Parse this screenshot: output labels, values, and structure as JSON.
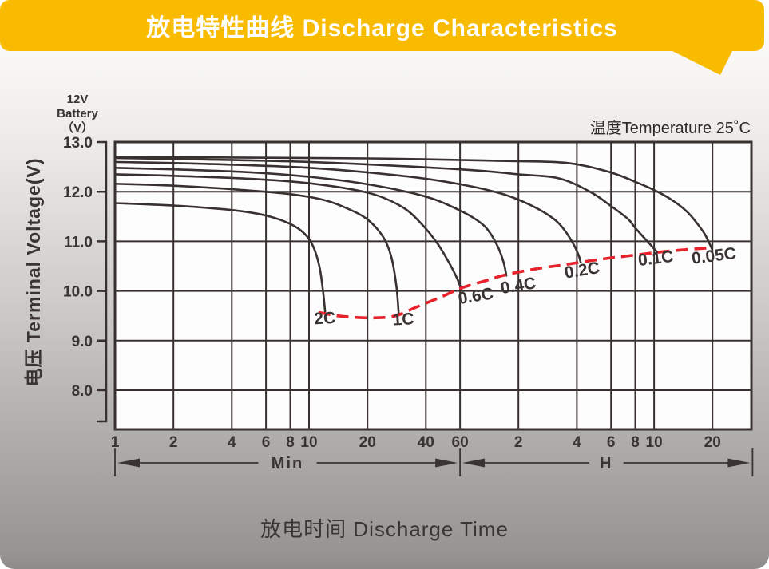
{
  "banner": {
    "title": "放电特性曲线 Discharge Characteristics",
    "bg_color": "#F8BB00",
    "text_color": "#FFFFFF"
  },
  "footer": {
    "x_axis_title": "放电时间 Discharge Time"
  },
  "chart_data": {
    "type": "line",
    "temperature_note": "温度Temperature 25˚C",
    "y_axis": {
      "title": "电压 Terminal Voltage(V)",
      "unit_lines": [
        "12V",
        "Battery",
        "（V）"
      ],
      "ticks": [
        13.0,
        12.0,
        11.0,
        10.0,
        9.0,
        8.0
      ],
      "unit": "V"
    },
    "x_axis": {
      "scale": "log",
      "unit_sections": [
        {
          "label": "Min",
          "from_t_min": 1,
          "to_t_min": 60
        },
        {
          "label": "H",
          "from_t_min": 60,
          "to_t_min": 1930
        }
      ],
      "ticks": [
        {
          "t_min": 1,
          "label": "1"
        },
        {
          "t_min": 2,
          "label": "2"
        },
        {
          "t_min": 4,
          "label": "4"
        },
        {
          "t_min": 6,
          "label": "6"
        },
        {
          "t_min": 8,
          "label": "8"
        },
        {
          "t_min": 10,
          "label": "10"
        },
        {
          "t_min": 20,
          "label": "20"
        },
        {
          "t_min": 40,
          "label": "40"
        },
        {
          "t_min": 60,
          "label": "60"
        },
        {
          "t_min": 120,
          "label": "2"
        },
        {
          "t_min": 240,
          "label": "4"
        },
        {
          "t_min": 360,
          "label": "6"
        },
        {
          "t_min": 480,
          "label": "8"
        },
        {
          "t_min": 600,
          "label": "10"
        },
        {
          "t_min": 1200,
          "label": "20"
        }
      ]
    },
    "style": {
      "curve_color": "#383130",
      "grid_color": "#383130",
      "cutoff_color": "#E8222D",
      "plot_bg": "#FDFDFD",
      "text_color": "#3A3433"
    },
    "series": [
      {
        "name": "2C",
        "points": [
          [
            1,
            11.77
          ],
          [
            2,
            11.72
          ],
          [
            4,
            11.63
          ],
          [
            6,
            11.52
          ],
          [
            8,
            11.35
          ],
          [
            9.5,
            11.15
          ],
          [
            10.5,
            10.9
          ],
          [
            11.3,
            10.5
          ],
          [
            11.8,
            10.0
          ],
          [
            12.1,
            9.58
          ]
        ]
      },
      {
        "name": "1C",
        "points": [
          [
            1,
            12.16
          ],
          [
            2,
            12.12
          ],
          [
            4,
            12.05
          ],
          [
            8,
            11.95
          ],
          [
            12,
            11.83
          ],
          [
            16,
            11.65
          ],
          [
            20,
            11.44
          ],
          [
            24,
            11.1
          ],
          [
            26.5,
            10.7
          ],
          [
            28.2,
            10.1
          ],
          [
            29,
            9.52
          ]
        ]
      },
      {
        "name": "0.6C",
        "points": [
          [
            1,
            12.35
          ],
          [
            2,
            12.32
          ],
          [
            5,
            12.26
          ],
          [
            10,
            12.17
          ],
          [
            20,
            11.98
          ],
          [
            30,
            11.7
          ],
          [
            38,
            11.35
          ],
          [
            46,
            10.95
          ],
          [
            53,
            10.55
          ],
          [
            58,
            10.25
          ],
          [
            61,
            10.03
          ]
        ]
      },
      {
        "name": "0.4C",
        "points": [
          [
            1,
            12.48
          ],
          [
            2,
            12.45
          ],
          [
            5,
            12.39
          ],
          [
            10,
            12.3
          ],
          [
            20,
            12.15
          ],
          [
            40,
            11.9
          ],
          [
            60,
            11.62
          ],
          [
            75,
            11.4
          ],
          [
            85,
            11.19
          ],
          [
            95,
            10.85
          ],
          [
            101,
            10.55
          ],
          [
            104,
            10.31
          ]
        ]
      },
      {
        "name": "0.2C",
        "points": [
          [
            1,
            12.6
          ],
          [
            3,
            12.56
          ],
          [
            10,
            12.48
          ],
          [
            30,
            12.32
          ],
          [
            60,
            12.15
          ],
          [
            100,
            11.95
          ],
          [
            140,
            11.72
          ],
          [
            180,
            11.47
          ],
          [
            205,
            11.25
          ],
          [
            230,
            10.95
          ],
          [
            245,
            10.72
          ],
          [
            251,
            10.58
          ]
        ]
      },
      {
        "name": "0.1C",
        "points": [
          [
            1,
            12.68
          ],
          [
            10,
            12.6
          ],
          [
            60,
            12.45
          ],
          [
            120,
            12.35
          ],
          [
            193,
            12.27
          ],
          [
            280,
            12.0
          ],
          [
            360,
            11.71
          ],
          [
            440,
            11.45
          ],
          [
            480,
            11.27
          ],
          [
            560,
            10.98
          ],
          [
            624,
            10.78
          ]
        ]
      },
      {
        "name": "0.05C",
        "points": [
          [
            1,
            12.7
          ],
          [
            20,
            12.67
          ],
          [
            100,
            12.62
          ],
          [
            212,
            12.58
          ],
          [
            350,
            12.4
          ],
          [
            500,
            12.17
          ],
          [
            624,
            12.0
          ],
          [
            750,
            11.82
          ],
          [
            885,
            11.6
          ],
          [
            1000,
            11.36
          ],
          [
            1089,
            11.16
          ],
          [
            1150,
            10.98
          ],
          [
            1195,
            10.84
          ]
        ]
      }
    ],
    "cutoff_envelope": {
      "style": "dashed",
      "points": [
        [
          11.2,
          9.57
        ],
        [
          14,
          9.5
        ],
        [
          19,
          9.46
        ],
        [
          25,
          9.47
        ],
        [
          29,
          9.52
        ],
        [
          36,
          9.68
        ],
        [
          48,
          9.88
        ],
        [
          61,
          10.06
        ],
        [
          80,
          10.2
        ],
        [
          104,
          10.33
        ],
        [
          150,
          10.45
        ],
        [
          200,
          10.52
        ],
        [
          251,
          10.58
        ],
        [
          350,
          10.66
        ],
        [
          450,
          10.71
        ],
        [
          624,
          10.78
        ],
        [
          800,
          10.82
        ],
        [
          1000,
          10.85
        ],
        [
          1195,
          10.87
        ]
      ]
    },
    "series_labels": [
      {
        "text": "2C",
        "t_min": 12.1,
        "v": 9.34,
        "rot": -3
      },
      {
        "text": "1C",
        "t_min": 30.7,
        "v": 9.32,
        "rot": -3
      },
      {
        "text": "0.6C",
        "t_min": 73,
        "v": 9.79,
        "rot": -9
      },
      {
        "text": "0.4C",
        "t_min": 121,
        "v": 10.0,
        "rot": -9
      },
      {
        "text": "0.2C",
        "t_min": 258,
        "v": 10.31,
        "rot": -9
      },
      {
        "text": "0.1C",
        "t_min": 617,
        "v": 10.55,
        "rot": -7
      },
      {
        "text": "0.05C",
        "t_min": 1230,
        "v": 10.6,
        "rot": -7
      }
    ]
  }
}
